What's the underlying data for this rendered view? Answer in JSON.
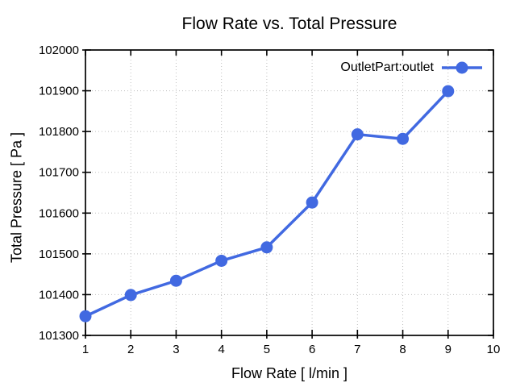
{
  "chart_data": {
    "type": "line",
    "title": "Flow Rate vs. Total Pressure",
    "xlabel": "Flow Rate [ l/min ]",
    "ylabel": "Total Pressure [ Pa ]",
    "xlim": [
      1,
      10
    ],
    "ylim": [
      101300,
      102000
    ],
    "xticks": [
      1,
      2,
      3,
      4,
      5,
      6,
      7,
      8,
      9,
      10
    ],
    "yticks": [
      101300,
      101400,
      101500,
      101600,
      101700,
      101800,
      101900,
      102000
    ],
    "grid": "dotted",
    "legend_position": "top-right-inside",
    "series": [
      {
        "name": "OutletPart:outlet",
        "color": "#4169e1",
        "marker": "circle",
        "x": [
          1,
          2,
          3,
          4,
          5,
          6,
          7,
          8,
          9
        ],
        "y": [
          101347,
          101399,
          101434,
          101483,
          101516,
          101626,
          101793,
          101782,
          101899
        ]
      }
    ],
    "style": {
      "background": "#ffffff",
      "text_color": "#000000",
      "grid_color": "#bfbfbf",
      "axis_color": "#000000"
    }
  }
}
